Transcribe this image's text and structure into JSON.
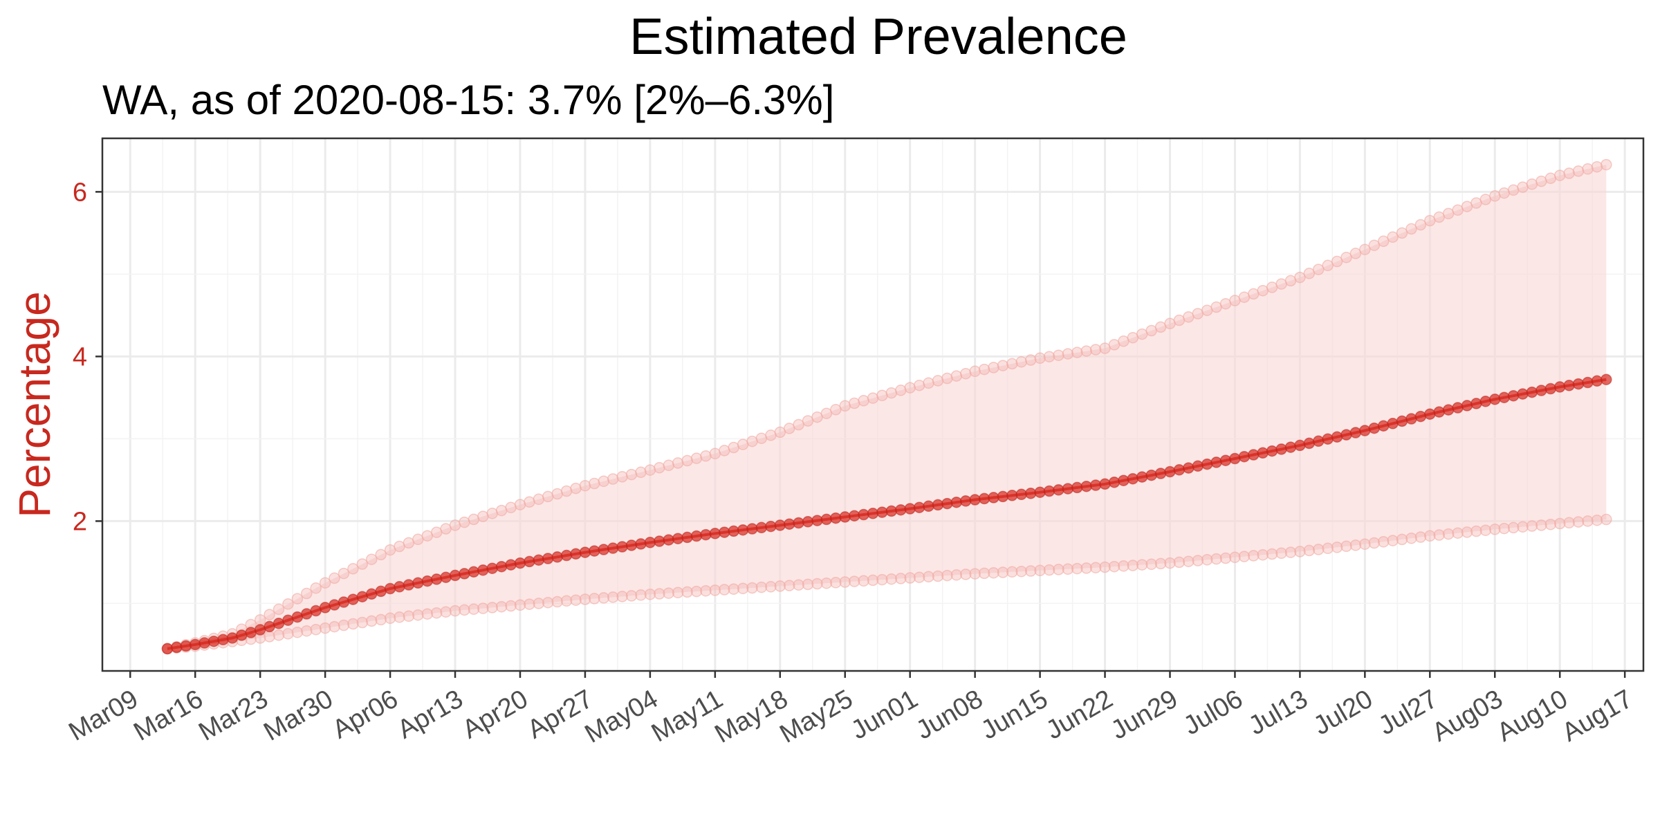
{
  "chart_data": {
    "type": "line",
    "title": "Estimated Prevalence",
    "subtitle": "WA, as of 2020-08-15:  3.7% [2%–6.3%]",
    "xlabel": "",
    "ylabel": "Percentage",
    "x_range": [
      "2020-03-06",
      "2020-08-19"
    ],
    "ylim": [
      0.18,
      6.65
    ],
    "yticks": [
      2,
      4,
      6
    ],
    "grid": true,
    "legend": "none",
    "colors": {
      "estimate": "#d7281e",
      "band_fill": "#f9d7d5",
      "bound_points": "#f2aaa4",
      "axis_text": "#4d4d4d",
      "ylabel": "#c8281e",
      "grid": "#ebebeb"
    },
    "xticks": [
      {
        "date": "2020-03-09",
        "label": "Mar09"
      },
      {
        "date": "2020-03-16",
        "label": "Mar16"
      },
      {
        "date": "2020-03-23",
        "label": "Mar23"
      },
      {
        "date": "2020-03-30",
        "label": "Mar30"
      },
      {
        "date": "2020-04-06",
        "label": "Apr06"
      },
      {
        "date": "2020-04-13",
        "label": "Apr13"
      },
      {
        "date": "2020-04-20",
        "label": "Apr20"
      },
      {
        "date": "2020-04-27",
        "label": "Apr27"
      },
      {
        "date": "2020-05-04",
        "label": "May04"
      },
      {
        "date": "2020-05-11",
        "label": "May11"
      },
      {
        "date": "2020-05-18",
        "label": "May18"
      },
      {
        "date": "2020-05-25",
        "label": "May25"
      },
      {
        "date": "2020-06-01",
        "label": "Jun01"
      },
      {
        "date": "2020-06-08",
        "label": "Jun08"
      },
      {
        "date": "2020-06-15",
        "label": "Jun15"
      },
      {
        "date": "2020-06-22",
        "label": "Jun22"
      },
      {
        "date": "2020-06-29",
        "label": "Jun29"
      },
      {
        "date": "2020-07-06",
        "label": "Jul06"
      },
      {
        "date": "2020-07-13",
        "label": "Jul13"
      },
      {
        "date": "2020-07-20",
        "label": "Jul20"
      },
      {
        "date": "2020-07-27",
        "label": "Jul27"
      },
      {
        "date": "2020-08-03",
        "label": "Aug03"
      },
      {
        "date": "2020-08-10",
        "label": "Aug10"
      },
      {
        "date": "2020-08-17",
        "label": "Aug17"
      }
    ],
    "x_start": "2020-03-13",
    "x_end": "2020-08-15",
    "series": [
      {
        "name": "estimate",
        "keypoints": [
          [
            "2020-03-13",
            0.45
          ],
          [
            "2020-03-16",
            0.5
          ],
          [
            "2020-03-20",
            0.58
          ],
          [
            "2020-03-23",
            0.68
          ],
          [
            "2020-03-30",
            0.95
          ],
          [
            "2020-04-06",
            1.18
          ],
          [
            "2020-04-13",
            1.34
          ],
          [
            "2020-04-20",
            1.49
          ],
          [
            "2020-04-27",
            1.62
          ],
          [
            "2020-05-04",
            1.74
          ],
          [
            "2020-05-11",
            1.85
          ],
          [
            "2020-05-18",
            1.95
          ],
          [
            "2020-05-25",
            2.05
          ],
          [
            "2020-06-01",
            2.15
          ],
          [
            "2020-06-08",
            2.26
          ],
          [
            "2020-06-15",
            2.35
          ],
          [
            "2020-06-22",
            2.45
          ],
          [
            "2020-06-29",
            2.6
          ],
          [
            "2020-07-06",
            2.76
          ],
          [
            "2020-07-13",
            2.92
          ],
          [
            "2020-07-20",
            3.1
          ],
          [
            "2020-07-27",
            3.3
          ],
          [
            "2020-08-03",
            3.48
          ],
          [
            "2020-08-10",
            3.63
          ],
          [
            "2020-08-15",
            3.72
          ]
        ]
      },
      {
        "name": "lower",
        "keypoints": [
          [
            "2020-03-13",
            0.45
          ],
          [
            "2020-03-16",
            0.48
          ],
          [
            "2020-03-23",
            0.58
          ],
          [
            "2020-03-30",
            0.7
          ],
          [
            "2020-04-06",
            0.82
          ],
          [
            "2020-04-13",
            0.91
          ],
          [
            "2020-04-20",
            0.98
          ],
          [
            "2020-04-27",
            1.05
          ],
          [
            "2020-05-04",
            1.11
          ],
          [
            "2020-05-11",
            1.16
          ],
          [
            "2020-05-18",
            1.21
          ],
          [
            "2020-05-25",
            1.26
          ],
          [
            "2020-06-01",
            1.31
          ],
          [
            "2020-06-08",
            1.36
          ],
          [
            "2020-06-15",
            1.4
          ],
          [
            "2020-06-22",
            1.44
          ],
          [
            "2020-06-29",
            1.49
          ],
          [
            "2020-07-06",
            1.56
          ],
          [
            "2020-07-13",
            1.63
          ],
          [
            "2020-07-20",
            1.72
          ],
          [
            "2020-07-27",
            1.82
          ],
          [
            "2020-08-03",
            1.9
          ],
          [
            "2020-08-10",
            1.97
          ],
          [
            "2020-08-15",
            2.02
          ]
        ]
      },
      {
        "name": "upper",
        "keypoints": [
          [
            "2020-03-13",
            0.45
          ],
          [
            "2020-03-16",
            0.52
          ],
          [
            "2020-03-20",
            0.63
          ],
          [
            "2020-03-23",
            0.8
          ],
          [
            "2020-03-30",
            1.25
          ],
          [
            "2020-04-06",
            1.65
          ],
          [
            "2020-04-13",
            1.95
          ],
          [
            "2020-04-20",
            2.2
          ],
          [
            "2020-04-27",
            2.43
          ],
          [
            "2020-05-04",
            2.62
          ],
          [
            "2020-05-11",
            2.82
          ],
          [
            "2020-05-18",
            3.08
          ],
          [
            "2020-05-25",
            3.4
          ],
          [
            "2020-06-01",
            3.62
          ],
          [
            "2020-06-08",
            3.82
          ],
          [
            "2020-06-15",
            3.98
          ],
          [
            "2020-06-22",
            4.1
          ],
          [
            "2020-06-29",
            4.4
          ],
          [
            "2020-07-06",
            4.68
          ],
          [
            "2020-07-13",
            4.96
          ],
          [
            "2020-07-20",
            5.3
          ],
          [
            "2020-07-27",
            5.65
          ],
          [
            "2020-08-03",
            5.95
          ],
          [
            "2020-08-10",
            6.2
          ],
          [
            "2020-08-15",
            6.33
          ]
        ]
      }
    ]
  }
}
